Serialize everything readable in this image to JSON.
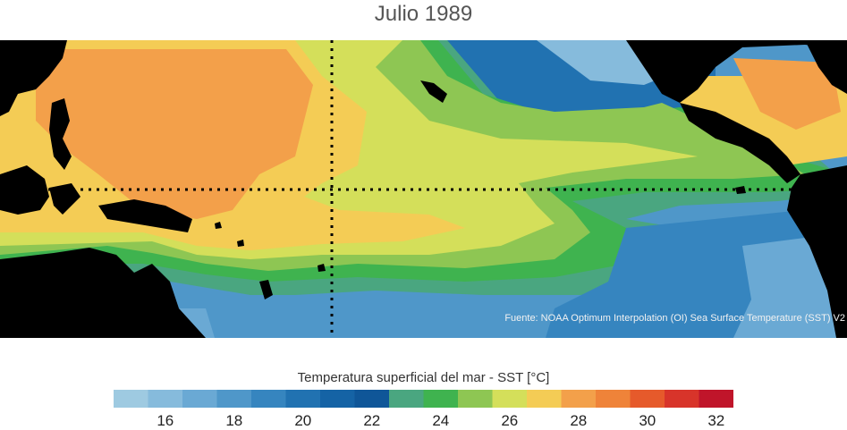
{
  "title": "Julio 1989",
  "source_note": "Fuente: NOAA Optimum Interpolation (OI) Sea Surface Temperature (SST) V2",
  "legend": {
    "title": "Temperatura superficial del mar - SST  [°C]",
    "ticks": [
      "16",
      "18",
      "20",
      "22",
      "24",
      "26",
      "28",
      "30",
      "32"
    ],
    "range": [
      15,
      33
    ],
    "colors": [
      "#9ecae1",
      "#86bbdc",
      "#6aa9d4",
      "#4f97c9",
      "#3685bf",
      "#2172b1",
      "#1563a5",
      "#0f5698",
      "#4aa680",
      "#3fb34f",
      "#8ec653",
      "#d4df5a",
      "#f4cc55",
      "#f3a04a",
      "#ef8339",
      "#e65a2b",
      "#d8342a",
      "#c0152a"
    ]
  },
  "map_colors": {
    "land": "#000000",
    "dateline": "#000000",
    "equator": "#000000"
  }
}
